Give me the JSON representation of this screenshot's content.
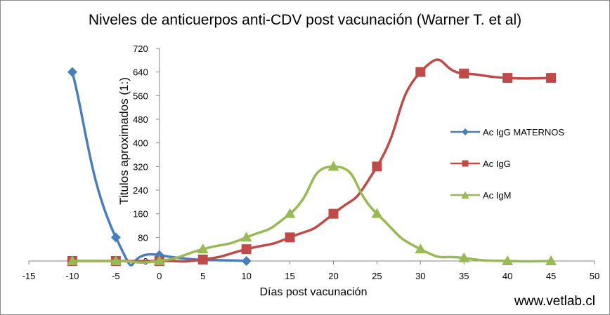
{
  "chart_data": {
    "type": "line",
    "title": "Niveles de anticuerpos anti-CDV post vacunación (Warner T. et al)",
    "xlabel": "Días post vacunación",
    "ylabel": "Titulos aproximados (1:)",
    "xlim": [
      -15,
      50
    ],
    "ylim": [
      0,
      720
    ],
    "x_ticks": [
      -15,
      -10,
      -5,
      0,
      5,
      10,
      15,
      20,
      25,
      30,
      35,
      40,
      45,
      50
    ],
    "y_ticks": [
      0,
      80,
      160,
      240,
      320,
      400,
      480,
      560,
      640,
      720
    ],
    "x_tick_labels": [
      "-15",
      "-10",
      "-5",
      "0",
      "5",
      "10",
      "15",
      "20",
      "25",
      "30",
      "35",
      "40",
      "45",
      "50"
    ],
    "y_tick_labels": [
      "0",
      "80",
      "160",
      "240",
      "320",
      "400",
      "480",
      "560",
      "640",
      "720"
    ],
    "grid": false,
    "legend_position": "right",
    "series": [
      {
        "name": "Ac IgG MATERNOS",
        "color": "#4a7ebb",
        "marker": "diamond",
        "x": [
          -10,
          -5,
          0,
          10
        ],
        "y": [
          640,
          80,
          20,
          0
        ]
      },
      {
        "name": "Ac IgG",
        "color": "#be4b48",
        "marker": "square",
        "x": [
          -10,
          -5,
          0,
          5,
          10,
          15,
          20,
          25,
          30,
          35,
          40,
          45
        ],
        "y": [
          0,
          0,
          0,
          5,
          40,
          80,
          160,
          320,
          640,
          635,
          620,
          620
        ]
      },
      {
        "name": "Ac IgM",
        "color": "#98b954",
        "marker": "triangle",
        "x": [
          -10,
          -5,
          0,
          5,
          10,
          15,
          20,
          25,
          30,
          35,
          40,
          45
        ],
        "y": [
          0,
          0,
          0,
          40,
          80,
          160,
          320,
          160,
          40,
          10,
          0,
          0
        ]
      }
    ]
  },
  "credit": "www.vetlab.cl"
}
